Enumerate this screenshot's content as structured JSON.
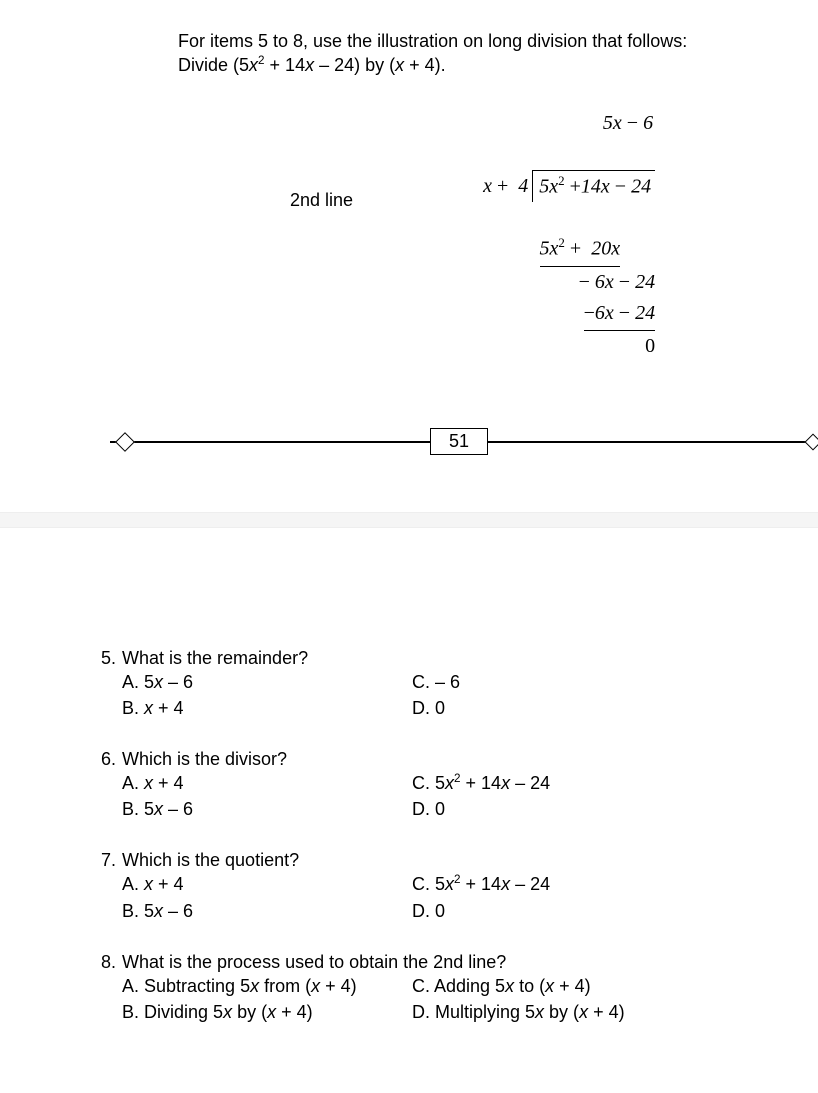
{
  "intro": {
    "line1": "For items 5 to 8, use the illustration on long division that follows:",
    "line2_prefix": "Divide (5",
    "line2_x2": "x",
    "line2_mid": " + 14",
    "line2_x": "x",
    "line2_rest": " – 24) by (",
    "line2_x3": "x",
    "line2_end": " + 4)."
  },
  "long_division": {
    "label": "2nd line",
    "quotient": "5x − 6",
    "divisor": "x +  4",
    "dividend": "5x² + 14x − 24",
    "step1": "5x² +  20x",
    "step2": "− 6x − 24",
    "step3": "−6x − 24",
    "remainder": "0"
  },
  "page_number": "51",
  "questions": [
    {
      "num": "5.",
      "stem": "What is the remainder?",
      "opts": {
        "A": "A. 5x – 6",
        "B": "B. x + 4",
        "C": "C. – 6",
        "D": "D. 0"
      }
    },
    {
      "num": "6.",
      "stem": "Which is the divisor?",
      "opts": {
        "A": "A. x + 4",
        "B": "B. 5x – 6",
        "C": "C. 5x² + 14x – 24",
        "D": "D. 0"
      }
    },
    {
      "num": "7.",
      "stem": "Which is the quotient?",
      "opts": {
        "A": "A. x + 4",
        "B": "B. 5x – 6",
        "C": "C. 5x² + 14x – 24",
        "D": "D. 0"
      }
    },
    {
      "num": "8.",
      "stem": "What is the process used to obtain the 2nd line?",
      "opts": {
        "A": "A. Subtracting 5x from (x + 4)",
        "B": "B. Dividing 5x by (x + 4)",
        "C": "C. Adding 5x to (x + 4)",
        "D": "D. Multiplying 5x by (x + 4)"
      }
    }
  ]
}
